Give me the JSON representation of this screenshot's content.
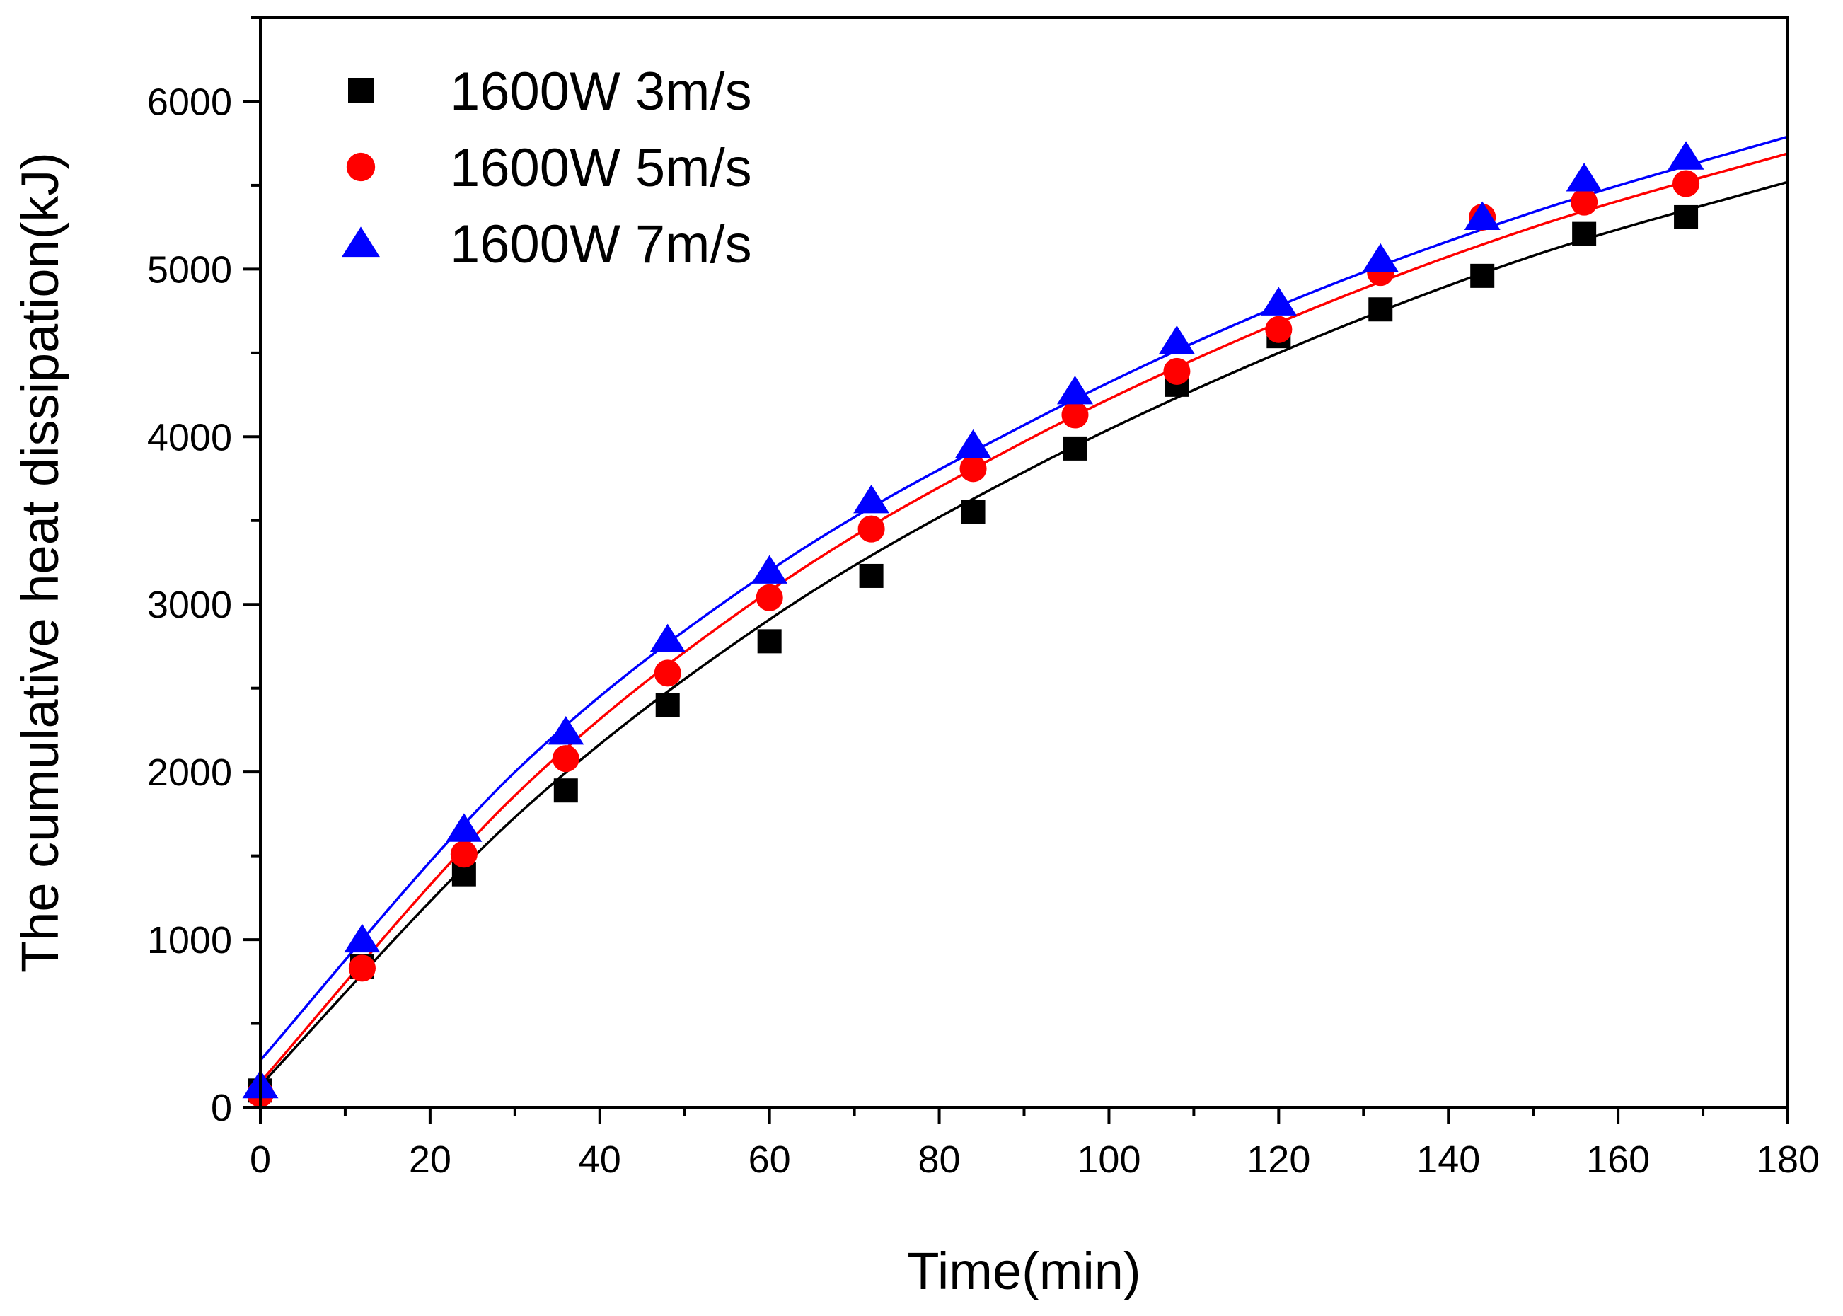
{
  "chart_data": {
    "type": "scatter",
    "xlabel": "Time(min)",
    "ylabel": "The cumulative heat dissipation(kJ)",
    "xlim": [
      0,
      180
    ],
    "ylim": [
      0,
      6500
    ],
    "xticks": [
      0,
      20,
      40,
      60,
      80,
      100,
      120,
      140,
      160,
      180
    ],
    "yticks": [
      0,
      1000,
      2000,
      3000,
      4000,
      5000,
      6000
    ],
    "grid": false,
    "legend_position": "top-left",
    "x": [
      0,
      12,
      24,
      36,
      48,
      60,
      72,
      84,
      96,
      108,
      120,
      132,
      144,
      156,
      168
    ],
    "series": [
      {
        "name": "1600W 3m/s",
        "marker": "square",
        "color": "#000000",
        "values": [
          100,
          840,
          1390,
          1890,
          2400,
          2780,
          3170,
          3550,
          3930,
          4310,
          4600,
          4760,
          4960,
          5210,
          5310
        ],
        "fit": [
          [
            0,
            130
          ],
          [
            30,
            1730
          ],
          [
            60,
            2910
          ],
          [
            90,
            3790
          ],
          [
            120,
            4500
          ],
          [
            150,
            5080
          ],
          [
            180,
            5520
          ]
        ]
      },
      {
        "name": "1600W 5m/s",
        "marker": "circle",
        "color": "#ff0000",
        "values": [
          80,
          830,
          1510,
          2080,
          2590,
          3040,
          3450,
          3810,
          4130,
          4390,
          4640,
          4980,
          5310,
          5400,
          5510
        ],
        "fit": [
          [
            0,
            150
          ],
          [
            30,
            1860
          ],
          [
            60,
            3080
          ],
          [
            90,
            3970
          ],
          [
            120,
            4680
          ],
          [
            150,
            5250
          ],
          [
            180,
            5690
          ]
        ]
      },
      {
        "name": "1600W 7m/s",
        "marker": "triangle",
        "color": "#0000ff",
        "values": [
          130,
          1000,
          1660,
          2240,
          2790,
          3200,
          3620,
          3950,
          4270,
          4570,
          4800,
          5060,
          5310,
          5540,
          5670
        ],
        "fit": [
          [
            0,
            280
          ],
          [
            30,
            2000
          ],
          [
            60,
            3200
          ],
          [
            90,
            4070
          ],
          [
            120,
            4780
          ],
          [
            150,
            5340
          ],
          [
            180,
            5790
          ]
        ]
      }
    ]
  }
}
